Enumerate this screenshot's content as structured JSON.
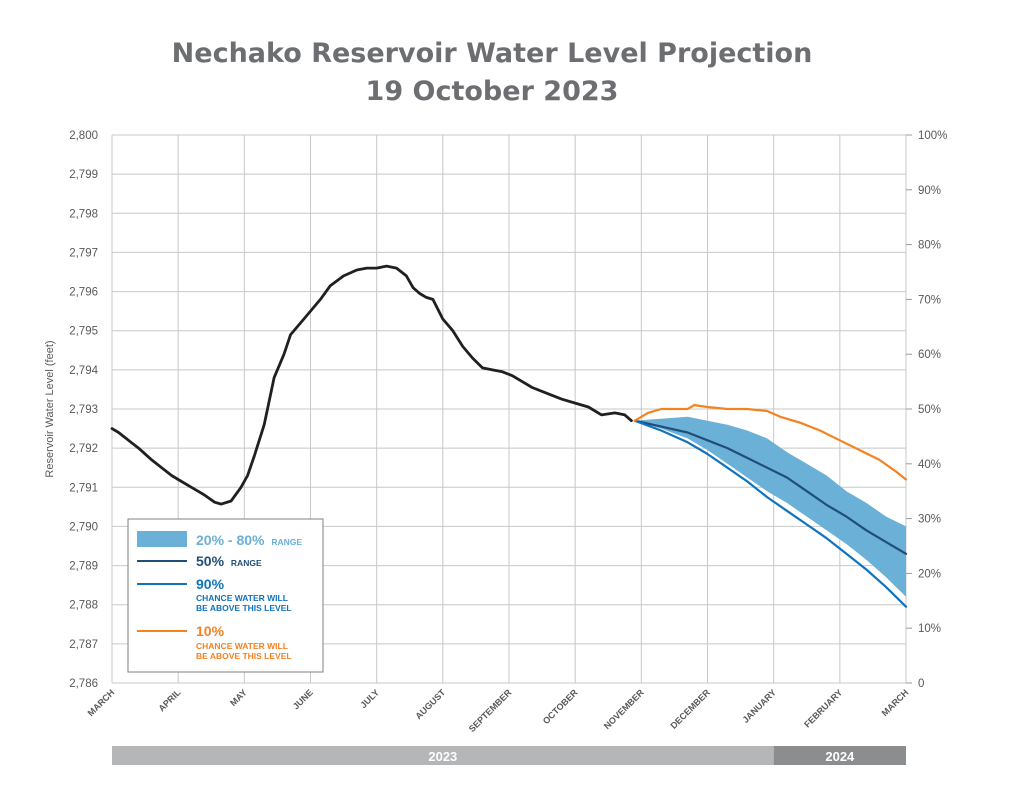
{
  "chart_data": {
    "type": "line",
    "title": "Nechako Reservoir Water Level Projection",
    "subtitle": "19 October 2023",
    "ylabel": "Reservoir Water Level (feet)",
    "ylim": [
      2786,
      2800
    ],
    "y_ticks": [
      "2,786",
      "2,787",
      "2,788",
      "2,789",
      "2,790",
      "2,791",
      "2,792",
      "2,793",
      "2,794",
      "2,795",
      "2,796",
      "2,797",
      "2,798",
      "2,799",
      "2,800"
    ],
    "y2_ticks": [
      "0",
      "10%",
      "20%",
      "30%",
      "40%",
      "50%",
      "60%",
      "70%",
      "80%",
      "90%",
      "100%"
    ],
    "x_labels": [
      "MARCH",
      "APRIL",
      "MAY",
      "JUNE",
      "JULY",
      "AUGUST",
      "SEPTEMBER",
      "OCTOBER",
      "NOVEMBER",
      "DECEMBER",
      "JANUARY",
      "FEBRUARY",
      "MARCH"
    ],
    "x_range": [
      0,
      12
    ],
    "grid": true,
    "legend_position": "bottom-left",
    "year_bar": [
      {
        "label": "2023",
        "from": 0,
        "to": 10
      },
      {
        "label": "2024",
        "from": 10,
        "to": 12
      }
    ],
    "series": [
      {
        "name": "Observed",
        "color": "#231f20",
        "x": [
          0,
          0.1,
          0.25,
          0.4,
          0.6,
          0.75,
          0.9,
          1.0,
          1.2,
          1.4,
          1.55,
          1.65,
          1.8,
          1.95,
          2.05,
          2.15,
          2.3,
          2.45,
          2.6,
          2.7,
          2.85,
          3.0,
          3.15,
          3.3,
          3.5,
          3.7,
          3.85,
          4.0,
          4.15,
          4.3,
          4.45,
          4.55,
          4.65,
          4.75,
          4.85,
          5.0,
          5.15,
          5.3,
          5.45,
          5.6,
          5.75,
          5.9,
          6.05,
          6.2,
          6.35,
          6.5,
          6.65,
          6.8,
          7.0,
          7.2,
          7.4,
          7.6,
          7.75,
          7.85
        ],
        "y": [
          2792.5,
          2792.4,
          2792.2,
          2792.0,
          2791.7,
          2791.5,
          2791.3,
          2791.2,
          2791.0,
          2790.8,
          2790.62,
          2790.57,
          2790.65,
          2791.0,
          2791.3,
          2791.8,
          2792.6,
          2793.8,
          2794.4,
          2794.9,
          2795.2,
          2795.5,
          2795.8,
          2796.15,
          2796.4,
          2796.55,
          2796.6,
          2796.6,
          2796.65,
          2796.6,
          2796.4,
          2796.1,
          2795.95,
          2795.85,
          2795.8,
          2795.3,
          2795.0,
          2794.6,
          2794.3,
          2794.05,
          2794.0,
          2793.95,
          2793.85,
          2793.7,
          2793.55,
          2793.45,
          2793.35,
          2793.25,
          2793.15,
          2793.05,
          2792.85,
          2792.9,
          2792.85,
          2792.7
        ]
      },
      {
        "name": "50% RANGE",
        "color": "#1f4e79",
        "x": [
          7.9,
          8.3,
          8.7,
          9.0,
          9.3,
          9.6,
          9.9,
          10.2,
          10.5,
          10.8,
          11.1,
          11.4,
          11.7,
          12.0
        ],
        "y": [
          2792.7,
          2792.55,
          2792.4,
          2792.2,
          2792.0,
          2791.75,
          2791.5,
          2791.25,
          2790.9,
          2790.55,
          2790.25,
          2789.9,
          2789.6,
          2789.3
        ]
      },
      {
        "name": "90%",
        "color": "#0f73be",
        "x": [
          7.9,
          8.3,
          8.7,
          9.0,
          9.3,
          9.6,
          9.9,
          10.2,
          10.5,
          10.8,
          11.1,
          11.4,
          11.7,
          12.0
        ],
        "y": [
          2792.7,
          2792.45,
          2792.15,
          2791.85,
          2791.5,
          2791.15,
          2790.75,
          2790.4,
          2790.05,
          2789.7,
          2789.3,
          2788.9,
          2788.45,
          2787.95
        ]
      },
      {
        "name": "10%",
        "color": "#f58220",
        "x": [
          7.9,
          8.1,
          8.3,
          8.7,
          8.8,
          9.0,
          9.3,
          9.6,
          9.9,
          10.1,
          10.4,
          10.7,
          11.0,
          11.3,
          11.6,
          11.85,
          12.0
        ],
        "y": [
          2792.7,
          2792.9,
          2793.0,
          2793.0,
          2793.1,
          2793.05,
          2793.0,
          2793.0,
          2792.95,
          2792.8,
          2792.65,
          2792.45,
          2792.2,
          2791.95,
          2791.7,
          2791.4,
          2791.2
        ]
      }
    ],
    "band": {
      "name": "20% - 80% RANGE",
      "color": "#6ab0d7",
      "x": [
        7.9,
        8.3,
        8.7,
        9.0,
        9.3,
        9.6,
        9.9,
        10.2,
        10.5,
        10.8,
        11.1,
        11.4,
        11.7,
        12.0
      ],
      "upper": [
        2792.7,
        2792.75,
        2792.8,
        2792.7,
        2792.6,
        2792.45,
        2792.25,
        2791.9,
        2791.6,
        2791.3,
        2790.9,
        2790.6,
        2790.25,
        2790.0
      ],
      "lower": [
        2792.7,
        2792.5,
        2792.25,
        2791.95,
        2791.6,
        2791.25,
        2790.9,
        2790.6,
        2790.25,
        2789.9,
        2789.55,
        2789.15,
        2788.7,
        2788.2
      ]
    }
  },
  "legend": {
    "band_pct": "20% - 80%",
    "band_word": "RANGE",
    "median_pct": "50%",
    "median_word": "RANGE",
    "p90_pct": "90%",
    "p90_line1": "CHANCE WATER WILL",
    "p90_line2": "BE ABOVE THIS LEVEL",
    "p10_pct": "10%",
    "p10_line1": "CHANCE WATER WILL",
    "p10_line2": "BE ABOVE THIS LEVEL"
  }
}
